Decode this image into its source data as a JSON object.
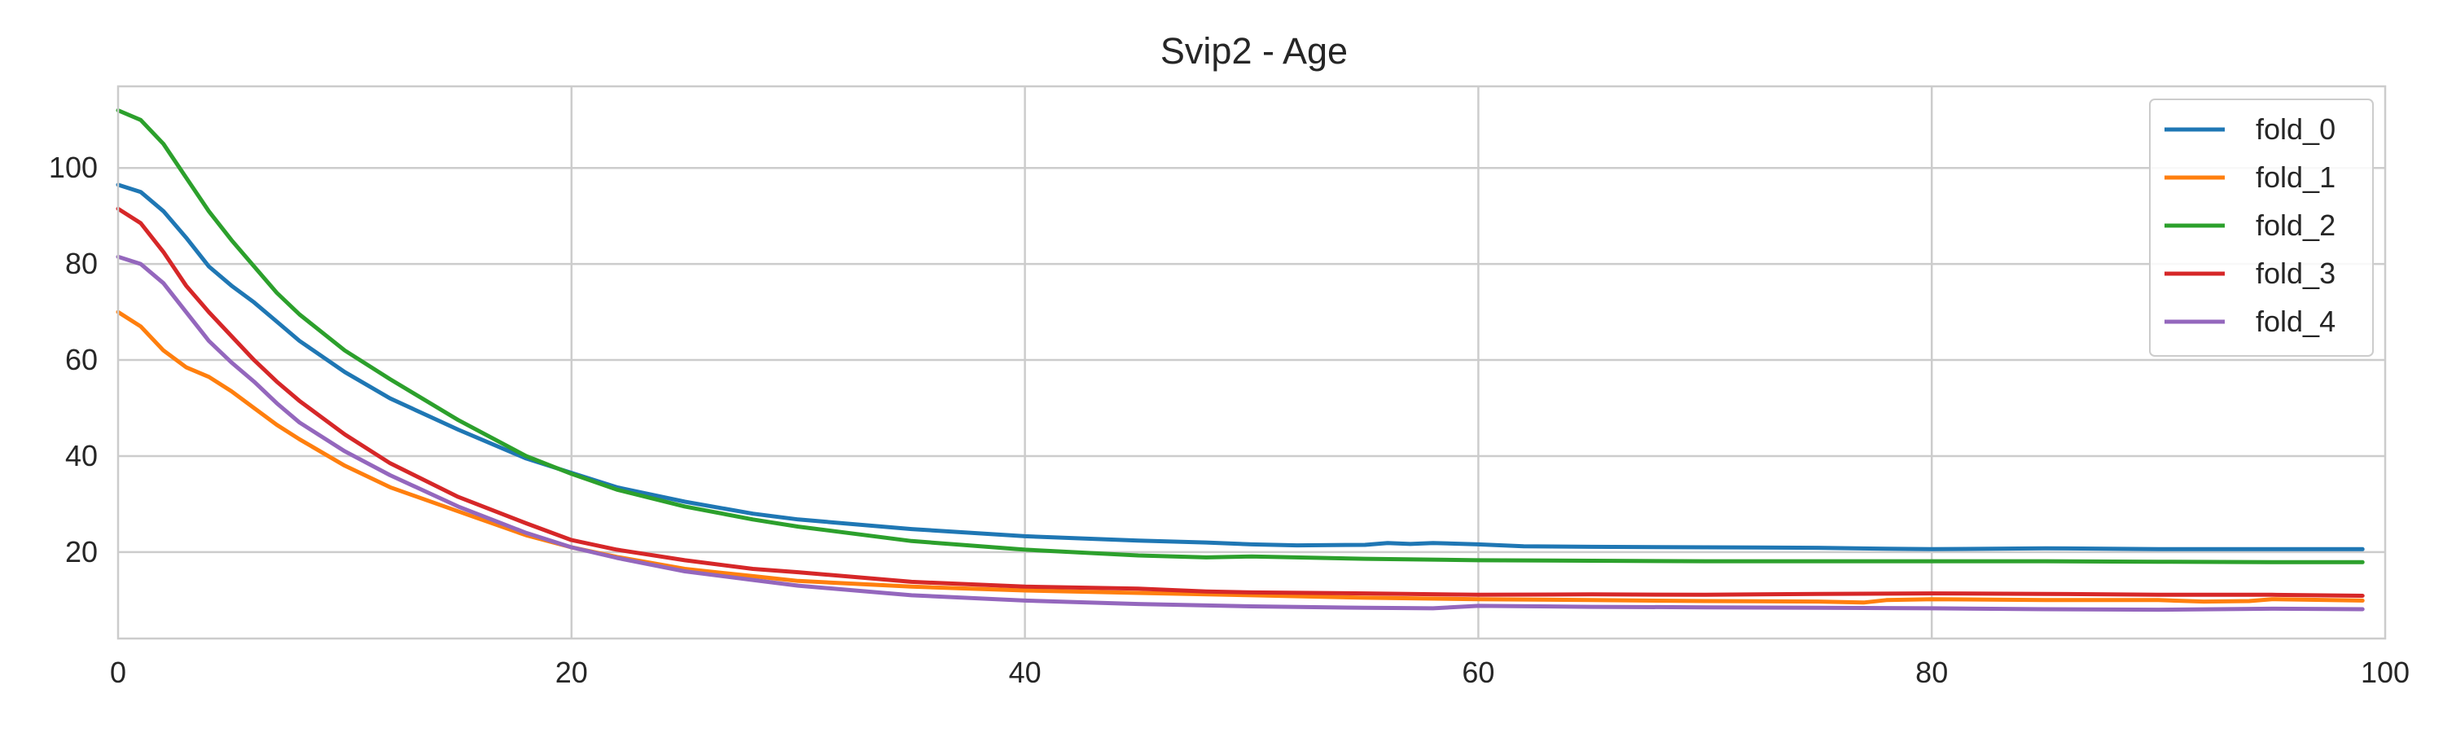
{
  "chart_data": {
    "type": "line",
    "title": "Svip2 - Age",
    "xlabel": "",
    "ylabel": "",
    "xlim": [
      0,
      100
    ],
    "ylim": [
      2,
      117
    ],
    "xticks": [
      0,
      20,
      40,
      60,
      80,
      100
    ],
    "yticks": [
      20,
      40,
      60,
      80,
      100
    ],
    "grid": true,
    "legend_position": "top-right",
    "series": [
      {
        "name": "fold_0",
        "color": "#1f77b4",
        "points": [
          [
            0,
            96.5
          ],
          [
            1,
            95
          ],
          [
            2,
            91
          ],
          [
            3,
            85.5
          ],
          [
            4,
            79.5
          ],
          [
            5,
            75.5
          ],
          [
            6,
            72
          ],
          [
            7,
            68
          ],
          [
            8,
            64
          ],
          [
            10,
            57.5
          ],
          [
            12,
            52
          ],
          [
            15,
            45.5
          ],
          [
            18,
            39.5
          ],
          [
            20,
            36.5
          ],
          [
            22,
            33.5
          ],
          [
            25,
            30.5
          ],
          [
            28,
            28
          ],
          [
            30,
            26.8
          ],
          [
            35,
            24.8
          ],
          [
            40,
            23.3
          ],
          [
            45,
            22.4
          ],
          [
            48,
            22
          ],
          [
            50,
            21.6
          ],
          [
            52,
            21.4
          ],
          [
            55,
            21.5
          ],
          [
            56,
            21.9
          ],
          [
            57,
            21.7
          ],
          [
            58,
            21.9
          ],
          [
            60,
            21.6
          ],
          [
            62,
            21.2
          ],
          [
            65,
            21.1
          ],
          [
            70,
            21
          ],
          [
            75,
            20.9
          ],
          [
            78,
            20.7
          ],
          [
            80,
            20.6
          ],
          [
            85,
            20.8
          ],
          [
            90,
            20.6
          ],
          [
            95,
            20.6
          ],
          [
            99,
            20.6
          ]
        ]
      },
      {
        "name": "fold_1",
        "color": "#ff7f0e",
        "points": [
          [
            0,
            70
          ],
          [
            1,
            67
          ],
          [
            2,
            62
          ],
          [
            3,
            58.5
          ],
          [
            4,
            56.5
          ],
          [
            5,
            53.5
          ],
          [
            6,
            50
          ],
          [
            7,
            46.5
          ],
          [
            8,
            43.5
          ],
          [
            10,
            38
          ],
          [
            12,
            33.5
          ],
          [
            15,
            28.5
          ],
          [
            18,
            23.5
          ],
          [
            20,
            21
          ],
          [
            22,
            19
          ],
          [
            25,
            16.5
          ],
          [
            28,
            15
          ],
          [
            30,
            14
          ],
          [
            35,
            12.8
          ],
          [
            40,
            12
          ],
          [
            45,
            11.5
          ],
          [
            50,
            11
          ],
          [
            55,
            10.5
          ],
          [
            60,
            10.2
          ],
          [
            65,
            10
          ],
          [
            70,
            9.8
          ],
          [
            75,
            9.7
          ],
          [
            77,
            9.5
          ],
          [
            78,
            10
          ],
          [
            80,
            10.2
          ],
          [
            85,
            10
          ],
          [
            90,
            10
          ],
          [
            92,
            9.7
          ],
          [
            94,
            9.8
          ],
          [
            95,
            10.2
          ],
          [
            99,
            9.9
          ]
        ]
      },
      {
        "name": "fold_2",
        "color": "#2ca02c",
        "points": [
          [
            0,
            112
          ],
          [
            1,
            110
          ],
          [
            2,
            105
          ],
          [
            3,
            98
          ],
          [
            4,
            91
          ],
          [
            5,
            85
          ],
          [
            6,
            79.5
          ],
          [
            7,
            74
          ],
          [
            8,
            69.5
          ],
          [
            10,
            62
          ],
          [
            12,
            56
          ],
          [
            15,
            47.5
          ],
          [
            18,
            40
          ],
          [
            20,
            36.3
          ],
          [
            22,
            33
          ],
          [
            25,
            29.5
          ],
          [
            28,
            26.8
          ],
          [
            30,
            25.3
          ],
          [
            35,
            22.3
          ],
          [
            40,
            20.5
          ],
          [
            45,
            19.3
          ],
          [
            48,
            18.9
          ],
          [
            50,
            19.1
          ],
          [
            55,
            18.6
          ],
          [
            60,
            18.3
          ],
          [
            70,
            18.1
          ],
          [
            80,
            18.1
          ],
          [
            85,
            18.1
          ],
          [
            90,
            18
          ],
          [
            95,
            17.9
          ],
          [
            99,
            17.9
          ]
        ]
      },
      {
        "name": "fold_3",
        "color": "#d62728",
        "points": [
          [
            0,
            91.5
          ],
          [
            1,
            88.5
          ],
          [
            2,
            82.5
          ],
          [
            3,
            75.5
          ],
          [
            4,
            70
          ],
          [
            5,
            65
          ],
          [
            6,
            60
          ],
          [
            7,
            55.5
          ],
          [
            8,
            51.5
          ],
          [
            10,
            44.5
          ],
          [
            12,
            38.5
          ],
          [
            15,
            31.5
          ],
          [
            18,
            26
          ],
          [
            20,
            22.5
          ],
          [
            22,
            20.5
          ],
          [
            25,
            18.3
          ],
          [
            28,
            16.5
          ],
          [
            30,
            15.8
          ],
          [
            35,
            13.8
          ],
          [
            40,
            12.8
          ],
          [
            45,
            12.4
          ],
          [
            48,
            11.8
          ],
          [
            50,
            11.6
          ],
          [
            55,
            11.4
          ],
          [
            60,
            11.1
          ],
          [
            65,
            11.2
          ],
          [
            70,
            11.1
          ],
          [
            75,
            11.3
          ],
          [
            80,
            11.4
          ],
          [
            85,
            11.3
          ],
          [
            90,
            11.1
          ],
          [
            95,
            11.1
          ],
          [
            99,
            10.9
          ]
        ]
      },
      {
        "name": "fold_4",
        "color": "#9467bd",
        "points": [
          [
            0,
            81.5
          ],
          [
            1,
            80
          ],
          [
            2,
            76
          ],
          [
            3,
            70
          ],
          [
            4,
            64
          ],
          [
            5,
            59.5
          ],
          [
            6,
            55.5
          ],
          [
            7,
            51
          ],
          [
            8,
            47
          ],
          [
            10,
            41
          ],
          [
            12,
            36
          ],
          [
            15,
            29.5
          ],
          [
            18,
            24
          ],
          [
            20,
            21
          ],
          [
            22,
            18.8
          ],
          [
            25,
            16
          ],
          [
            28,
            14.2
          ],
          [
            30,
            13
          ],
          [
            35,
            11
          ],
          [
            40,
            9.9
          ],
          [
            45,
            9.2
          ],
          [
            50,
            8.7
          ],
          [
            55,
            8.4
          ],
          [
            58,
            8.3
          ],
          [
            60,
            8.8
          ],
          [
            65,
            8.6
          ],
          [
            70,
            8.5
          ],
          [
            75,
            8.4
          ],
          [
            80,
            8.3
          ],
          [
            85,
            8.1
          ],
          [
            90,
            8
          ],
          [
            95,
            8.2
          ],
          [
            99,
            8.1
          ]
        ]
      }
    ]
  }
}
